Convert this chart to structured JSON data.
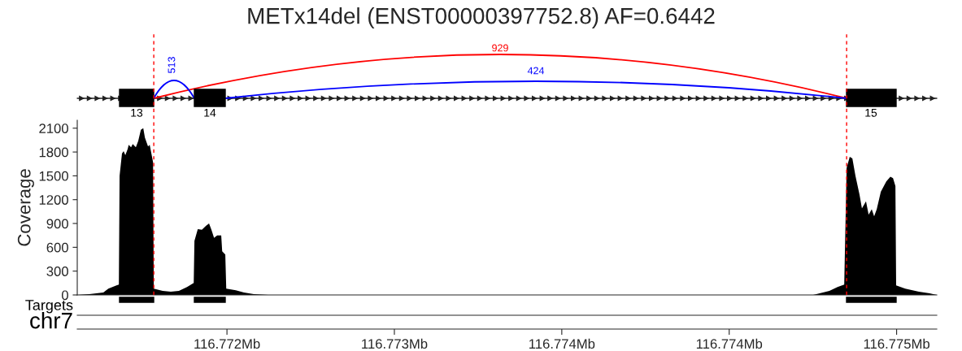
{
  "chart_data": {
    "type": "area",
    "title": "METx14del (ENST00000397752.8) AF=0.6442",
    "ylabel": "Coverage",
    "color": "#000000",
    "xlim": [
      116.771574,
      116.775168
    ],
    "ylim": [
      0,
      2200
    ],
    "yticks": [
      0,
      300,
      600,
      900,
      1200,
      1500,
      1800,
      2100
    ],
    "xticks": [
      {
        "value": 116.7722,
        "label": "116.772Mb"
      },
      {
        "value": 116.7729,
        "label": "116.773Mb"
      },
      {
        "value": 116.7736,
        "label": "116.774Mb"
      },
      {
        "value": 116.7743,
        "label": "116.774Mb"
      },
      {
        "value": 116.775,
        "label": "116.775Mb"
      }
    ],
    "x": [
      116.771574,
      116.771625,
      116.771683,
      116.771704,
      116.771738,
      116.771748,
      116.771751,
      116.771761,
      116.771768,
      116.771775,
      116.771785,
      116.771789,
      116.771799,
      116.771806,
      116.771819,
      116.771829,
      116.77184,
      116.77185,
      116.771857,
      116.77187,
      116.771877,
      116.771884,
      116.771891,
      116.771894,
      116.771931,
      116.771965,
      116.771999,
      116.772033,
      116.772061,
      116.772064,
      116.772078,
      116.772095,
      116.772112,
      116.772125,
      116.772135,
      116.772146,
      116.772159,
      116.772176,
      116.77218,
      116.772193,
      116.772197,
      116.772237,
      116.772271,
      116.772312,
      116.772373,
      116.774651,
      116.774719,
      116.774753,
      116.774781,
      116.774791,
      116.774804,
      116.774815,
      116.774828,
      116.774845,
      116.774855,
      116.774872,
      116.774883,
      116.774896,
      116.774906,
      116.774917,
      116.774934,
      116.774957,
      116.774974,
      116.774985,
      116.774995,
      116.774998,
      116.775036,
      116.775093,
      116.775138,
      116.775168
    ],
    "values": [
      0,
      10,
      30,
      80,
      120,
      130,
      1500,
      1780,
      1810,
      1760,
      1840,
      1890,
      1860,
      1900,
      1860,
      1940,
      2080,
      2100,
      1980,
      1870,
      1890,
      1780,
      1670,
      80,
      50,
      40,
      50,
      100,
      150,
      680,
      830,
      820,
      870,
      900,
      820,
      720,
      750,
      750,
      550,
      510,
      80,
      60,
      30,
      10,
      0,
      0,
      50,
      100,
      130,
      1600,
      1740,
      1720,
      1500,
      1260,
      1090,
      1180,
      1010,
      1080,
      990,
      1080,
      1300,
      1430,
      1490,
      1470,
      1370,
      120,
      80,
      40,
      20,
      0
    ],
    "ref_lines": [
      {
        "axis": "x",
        "value": 116.771894,
        "color": "#ff0000",
        "line_style": "dashed"
      },
      {
        "axis": "x",
        "value": 116.774791,
        "color": "#ff0000",
        "line_style": "dashed"
      }
    ],
    "annotations": [
      "929",
      "513",
      "424",
      "13",
      "14",
      "15",
      "Targets",
      "chr7"
    ]
  }
}
